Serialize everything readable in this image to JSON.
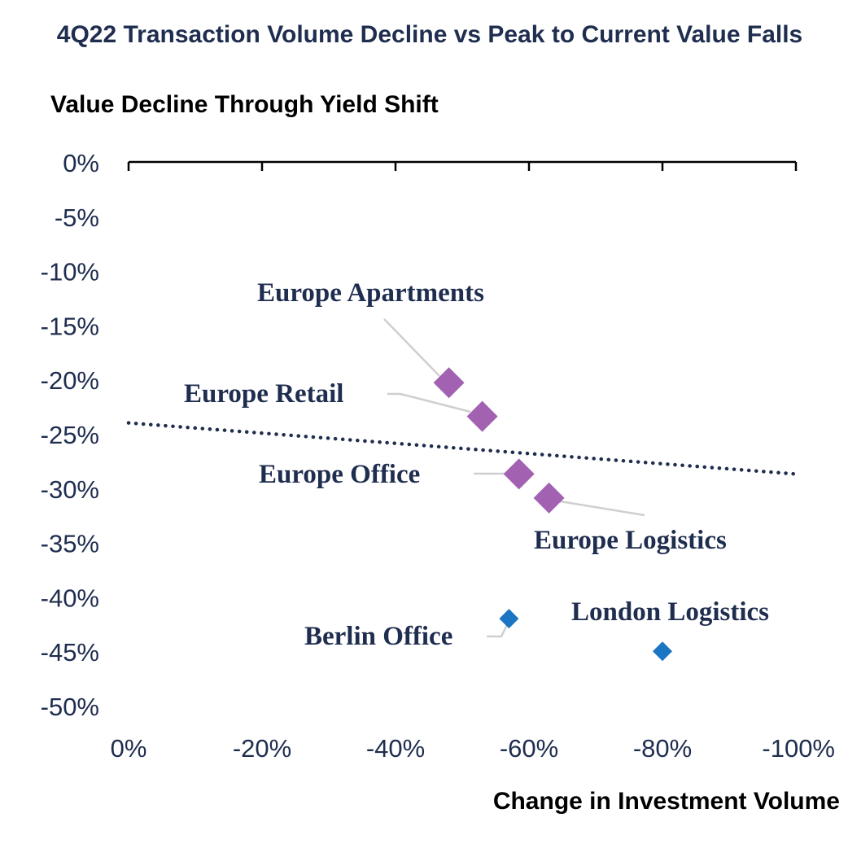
{
  "chart_data": {
    "type": "scatter",
    "title": "4Q22 Transaction Volume Decline vs Peak to Current Value Falls",
    "ylabel": "Value Decline Through Yield Shift",
    "xlabel": "Change in Investment Volume",
    "xlim": [
      0,
      -100
    ],
    "ylim": [
      -50,
      0
    ],
    "x_ticks": [
      "0%",
      "-20%",
      "-40%",
      "-60%",
      "-80%",
      "-100%"
    ],
    "y_ticks": [
      "0%",
      "-5%",
      "-10%",
      "-15%",
      "-20%",
      "-25%",
      "-30%",
      "-35%",
      "-40%",
      "-45%",
      "-50%"
    ],
    "grid": false,
    "trendline": {
      "style": "dotted",
      "color": "#1f2d4f",
      "x": [
        0,
        -100
      ],
      "y": [
        -24.0,
        -28.7
      ]
    },
    "series": [
      {
        "color": "#a262b1",
        "marker": "diamond-large",
        "points": [
          {
            "label": "Europe Apartments",
            "x": -48,
            "y": -20.3
          },
          {
            "label": "Europe Retail",
            "x": -53,
            "y": -23.4
          },
          {
            "label": "Europe Office",
            "x": -58.5,
            "y": -28.7
          },
          {
            "label": "Europe Logistics",
            "x": -63,
            "y": -30.9
          }
        ]
      },
      {
        "color": "#1a75c2",
        "marker": "diamond-small",
        "points": [
          {
            "label": "Berlin Office",
            "x": -57,
            "y": -42.0
          },
          {
            "label": "London Logistics",
            "x": -80,
            "y": -45.0
          }
        ]
      }
    ]
  }
}
